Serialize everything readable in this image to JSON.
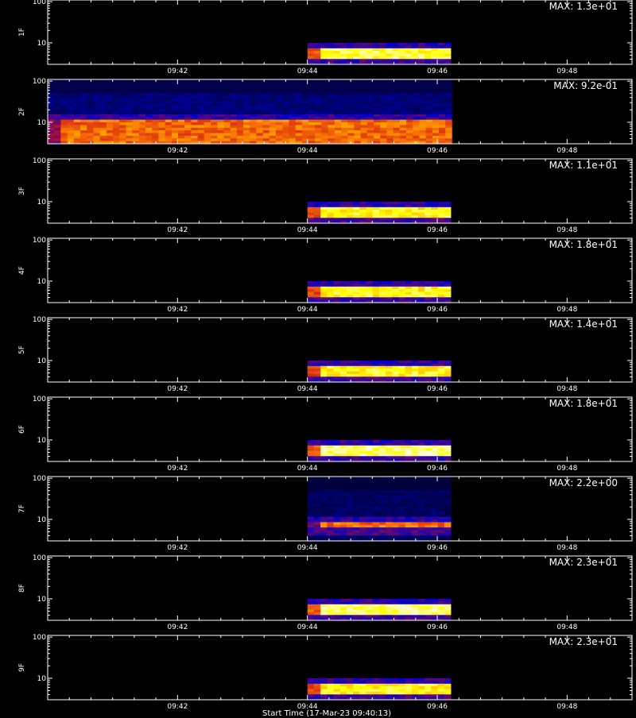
{
  "chart_data": {
    "type": "heatmap",
    "x_time_start": "09:40",
    "x_time_end": "09:49",
    "x_ticks": [
      "09:42",
      "09:44",
      "09:46",
      "09:48"
    ],
    "y_scale": "log",
    "y_range": [
      3,
      110
    ],
    "y_ticks": [
      10,
      100
    ],
    "colormap": [
      "#000000",
      "#0000c8",
      "#d21414",
      "#ff8800",
      "#ffff00",
      "#ffffff"
    ],
    "panels": [
      {
        "label": "1F",
        "max_text": "MAX: 1.3e+01",
        "data_start": "09:44",
        "data_end": "09:46:10",
        "band_low": 4,
        "band_high": 7.2,
        "peak": 0.85,
        "bg": 0.0
      },
      {
        "label": "2F",
        "max_text": "MAX: 9.2e-01",
        "data_start": "09:40",
        "data_end": "09:46:10",
        "band_low": 3,
        "band_high": 12,
        "peak": 0.55,
        "bg": 0.15
      },
      {
        "label": "3F",
        "max_text": "MAX: 1.1e+01",
        "data_start": "09:44",
        "data_end": "09:46:10",
        "band_low": 4,
        "band_high": 7.2,
        "peak": 0.8,
        "bg": 0.0
      },
      {
        "label": "4F",
        "max_text": "MAX: 1.8e+01",
        "data_start": "09:44",
        "data_end": "09:46:10",
        "band_low": 4,
        "band_high": 7.2,
        "peak": 0.8,
        "bg": 0.0
      },
      {
        "label": "5F",
        "max_text": "MAX: 1.4e+01",
        "data_start": "09:44",
        "data_end": "09:46:10",
        "band_low": 4,
        "band_high": 7.2,
        "peak": 0.8,
        "bg": 0.0
      },
      {
        "label": "6F",
        "max_text": "MAX: 1.8e+01",
        "data_start": "09:44",
        "data_end": "09:46:10",
        "band_low": 4,
        "band_high": 7.2,
        "peak": 0.88,
        "bg": 0.0
      },
      {
        "label": "7F",
        "max_text": "MAX: 2.2e+00",
        "data_start": "09:44",
        "data_end": "09:46:10",
        "band_low": 6,
        "band_high": 9,
        "peak": 0.55,
        "bg": 0.12
      },
      {
        "label": "8F",
        "max_text": "MAX: 2.3e+01",
        "data_start": "09:44",
        "data_end": "09:46:10",
        "band_low": 4,
        "band_high": 7.2,
        "peak": 0.88,
        "bg": 0.0
      },
      {
        "label": "9F",
        "max_text": "MAX: 2.3e+01",
        "data_start": "09:44",
        "data_end": "09:46:10",
        "band_low": 4,
        "band_high": 7.2,
        "peak": 0.8,
        "bg": 0.0
      }
    ]
  },
  "footer_caption": "Start Time (17-Mar-23 09:40:13)"
}
